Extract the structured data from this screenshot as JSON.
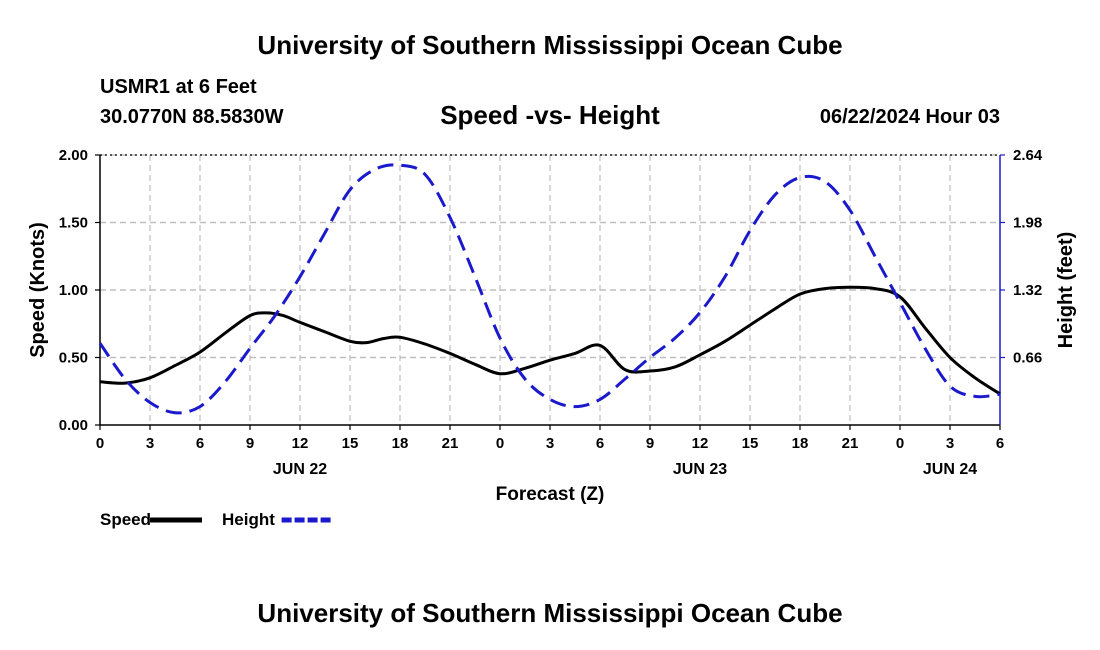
{
  "header": {
    "title": "University of Southern Mississippi Ocean Cube",
    "station": "USMR1 at 6 Feet",
    "coords": "30.0770N  88.5830W",
    "subtitle": "Speed -vs- Height",
    "datetime": "06/22/2024 Hour 03"
  },
  "footer": {
    "title": "University of Southern Mississippi Ocean Cube"
  },
  "chart_data": {
    "type": "line",
    "title": "Speed -vs- Height",
    "xlabel": "Forecast (Z)",
    "ylabel": "Speed (Knots)",
    "y2label": "Height (feet)",
    "x_range_hours": [
      0,
      54
    ],
    "x_ticks": [
      0,
      3,
      6,
      9,
      12,
      15,
      18,
      21,
      24,
      27,
      30,
      33,
      36,
      39,
      42,
      45,
      48,
      51,
      54
    ],
    "x_tick_labels": [
      "0",
      "3",
      "6",
      "9",
      "12",
      "15",
      "18",
      "21",
      "0",
      "3",
      "6",
      "9",
      "12",
      "15",
      "18",
      "21",
      "0",
      "3",
      "6"
    ],
    "date_labels": [
      {
        "hour": 12,
        "label": "JUN 22"
      },
      {
        "hour": 36,
        "label": "JUN 23"
      },
      {
        "hour": 51,
        "label": "JUN 24"
      }
    ],
    "ylim": [
      0,
      2
    ],
    "y_ticks": [
      0,
      0.5,
      1.0,
      1.5,
      2.0
    ],
    "y_tick_labels": [
      "0.00",
      "0.50",
      "1.00",
      "1.50",
      "2.00"
    ],
    "y2lim": [
      0,
      2.64
    ],
    "y2_ticks": [
      0.66,
      1.32,
      1.98,
      2.64
    ],
    "y2_tick_labels": [
      "0.66",
      "1.32",
      "1.98",
      "2.64"
    ],
    "grid": true,
    "legend_position": "bottom-left",
    "series": [
      {
        "name": "Speed",
        "axis": "left",
        "color": "#000000",
        "style": "solid",
        "x": [
          0,
          1.5,
          3,
          4.5,
          6,
          7.5,
          9,
          10,
          11,
          12,
          13.5,
          15,
          16,
          17,
          18,
          19.5,
          21,
          22.5,
          24,
          25.5,
          27,
          28.5,
          30,
          31.5,
          33,
          34.5,
          36,
          37.5,
          39,
          40.5,
          42,
          43.5,
          45,
          46.5,
          48,
          49.5,
          51,
          52.5,
          54
        ],
        "values": [
          0.32,
          0.31,
          0.35,
          0.44,
          0.54,
          0.68,
          0.81,
          0.83,
          0.81,
          0.76,
          0.69,
          0.62,
          0.61,
          0.64,
          0.65,
          0.6,
          0.53,
          0.45,
          0.38,
          0.42,
          0.48,
          0.53,
          0.59,
          0.41,
          0.4,
          0.43,
          0.52,
          0.62,
          0.74,
          0.86,
          0.97,
          1.01,
          1.02,
          1.01,
          0.95,
          0.72,
          0.5,
          0.35,
          0.23
        ]
      },
      {
        "name": "Height",
        "axis": "right",
        "color": "#1a1acc",
        "style": "dashed",
        "x": [
          0,
          1.5,
          3,
          4.5,
          6,
          7.5,
          9,
          10.5,
          12,
          13.5,
          15,
          16.5,
          18,
          19.5,
          21,
          22.5,
          24,
          25.5,
          27,
          28.5,
          30,
          31.5,
          33,
          34.5,
          36,
          37.5,
          39,
          40.5,
          42,
          43.5,
          45,
          46.5,
          48,
          49.5,
          51,
          52.5,
          54
        ],
        "values": [
          0.8,
          0.45,
          0.22,
          0.12,
          0.18,
          0.42,
          0.75,
          1.07,
          1.45,
          1.88,
          2.3,
          2.5,
          2.54,
          2.45,
          2.03,
          1.45,
          0.85,
          0.45,
          0.25,
          0.18,
          0.25,
          0.45,
          0.66,
          0.85,
          1.1,
          1.45,
          1.9,
          2.25,
          2.42,
          2.38,
          2.1,
          1.65,
          1.2,
          0.75,
          0.38,
          0.28,
          0.3
        ]
      }
    ]
  }
}
